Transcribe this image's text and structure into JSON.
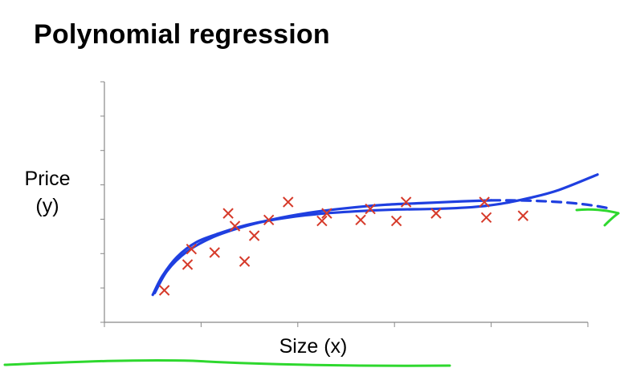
{
  "chart_data": {
    "type": "scatter",
    "title": "Polynomial regression",
    "xlabel": "Size (x)",
    "ylabel": [
      "Price",
      "(y)"
    ],
    "xlim": [
      0,
      5
    ],
    "ylim": [
      0,
      7
    ],
    "grid": false,
    "x_ticks_count": 6,
    "y_ticks_count": 8,
    "points": [
      {
        "x": 0.62,
        "y": 0.93
      },
      {
        "x": 0.86,
        "y": 1.68
      },
      {
        "x": 0.9,
        "y": 2.13
      },
      {
        "x": 1.14,
        "y": 2.03
      },
      {
        "x": 1.28,
        "y": 3.17
      },
      {
        "x": 1.35,
        "y": 2.8
      },
      {
        "x": 1.45,
        "y": 1.77
      },
      {
        "x": 1.55,
        "y": 2.52
      },
      {
        "x": 1.7,
        "y": 2.98
      },
      {
        "x": 1.9,
        "y": 3.5
      },
      {
        "x": 2.25,
        "y": 2.95
      },
      {
        "x": 2.3,
        "y": 3.17
      },
      {
        "x": 2.65,
        "y": 2.98
      },
      {
        "x": 2.75,
        "y": 3.3
      },
      {
        "x": 3.02,
        "y": 2.95
      },
      {
        "x": 3.12,
        "y": 3.5
      },
      {
        "x": 3.43,
        "y": 3.17
      },
      {
        "x": 3.93,
        "y": 3.5
      },
      {
        "x": 3.95,
        "y": 3.05
      },
      {
        "x": 4.33,
        "y": 3.1
      }
    ],
    "series": [
      {
        "style": "solid",
        "color": "#1f3fe0",
        "x": [
          0.5,
          0.6,
          0.75,
          0.95,
          1.2,
          1.5,
          1.85,
          2.2,
          2.6,
          3.0,
          3.4,
          3.8,
          4.1,
          4.4,
          4.7,
          5.1
        ],
        "y": [
          0.8,
          1.35,
          1.9,
          2.33,
          2.6,
          2.85,
          3.03,
          3.15,
          3.23,
          3.28,
          3.3,
          3.35,
          3.45,
          3.62,
          3.85,
          4.3
        ]
      },
      {
        "style": "solid",
        "color": "#1f3fe0",
        "x": [
          0.52,
          0.65,
          0.85,
          1.1,
          1.4,
          1.75,
          2.1,
          2.5,
          2.9,
          3.3,
          3.7,
          4.0
        ],
        "y": [
          0.85,
          1.5,
          2.05,
          2.45,
          2.75,
          3.0,
          3.18,
          3.32,
          3.42,
          3.47,
          3.52,
          3.55
        ]
      },
      {
        "style": "dashed",
        "color": "#1f3fe0",
        "x": [
          4.0,
          4.2,
          4.5,
          4.8,
          5.05,
          5.25
        ],
        "y": [
          3.55,
          3.55,
          3.53,
          3.48,
          3.4,
          3.3
        ]
      }
    ],
    "annotations": [
      {
        "kind": "green-arrow",
        "color": "#2ed82e"
      },
      {
        "kind": "green-underline",
        "color": "#2ed82e"
      }
    ],
    "colors": {
      "marker": "#d63a2a",
      "axis": "#888888",
      "curve": "#1f3fe0",
      "ink": "#2ed82e"
    }
  }
}
